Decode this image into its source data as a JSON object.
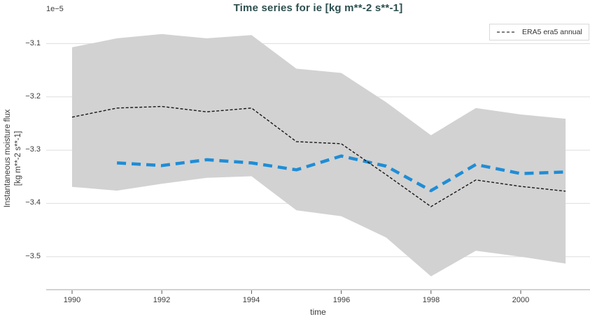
{
  "chart_data": {
    "type": "line",
    "title": "Time series for ie [kg m**-2 s**-1]",
    "xlabel": "time",
    "ylabel_lines": [
      "Instantaneous moisture flux",
      "[kg m**-2 s**-1]"
    ],
    "y_offset_label": "1e−5",
    "value_scale_note": "y values are in units of 1e-5 kg m**-2 s**-1",
    "grid": true,
    "legend_position": "top-right",
    "legend": [
      {
        "label": "ERA5 era5 annual",
        "sample": "black-dashed-line"
      }
    ],
    "xlim": [
      1989.4,
      2001.55
    ],
    "ylim": [
      -3.56,
      -3.06
    ],
    "xticks": [
      1990,
      1992,
      1994,
      1996,
      1998,
      2000
    ],
    "yticks": [
      -3.1,
      -3.2,
      -3.3,
      -3.4,
      -3.5
    ],
    "ytick_labels": [
      "−3.1",
      "−3.2",
      "−3.3",
      "−3.4",
      "−3.5"
    ],
    "colors": {
      "band": "#d2d2d2",
      "era5_line": "#161616",
      "mean_line": "#1f8dd6",
      "gridline": "#dedede",
      "axis_line": "#d2d2d2",
      "title": "#2d4f4f"
    },
    "series": [
      {
        "name": "ERA5 era5 annual",
        "style": "dashed-thin",
        "color": "#161616",
        "x": [
          1990,
          1991,
          1992,
          1993,
          1994,
          1995,
          1996,
          1997,
          1998,
          1999,
          2000,
          2001
        ],
        "values": [
          -3.238,
          -3.221,
          -3.218,
          -3.228,
          -3.221,
          -3.284,
          -3.288,
          -3.346,
          -3.406,
          -3.356,
          -3.368,
          -3.377
        ]
      },
      {
        "name": "blue-dashed-series",
        "style": "dashed-thick",
        "color": "#1f8dd6",
        "x": [
          1991,
          1992,
          1993,
          1994,
          1995,
          1996,
          1997,
          1998,
          1999,
          2000,
          2001
        ],
        "values": [
          -3.324,
          -3.329,
          -3.318,
          -3.324,
          -3.337,
          -3.311,
          -3.33,
          -3.376,
          -3.327,
          -3.344,
          -3.341
        ]
      }
    ],
    "band": {
      "name": "uncertainty-band",
      "color": "#d2d2d2",
      "x": [
        1990,
        1991,
        1992,
        1993,
        1994,
        1995,
        1996,
        1997,
        1998,
        1999,
        2000,
        2001
      ],
      "upper": [
        -3.107,
        -3.09,
        -3.082,
        -3.09,
        -3.084,
        -3.147,
        -3.155,
        -3.21,
        -3.272,
        -3.221,
        -3.233,
        -3.241
      ],
      "lower": [
        -3.369,
        -3.376,
        -3.363,
        -3.352,
        -3.349,
        -3.413,
        -3.424,
        -3.464,
        -3.537,
        -3.489,
        -3.5,
        -3.513
      ]
    }
  }
}
